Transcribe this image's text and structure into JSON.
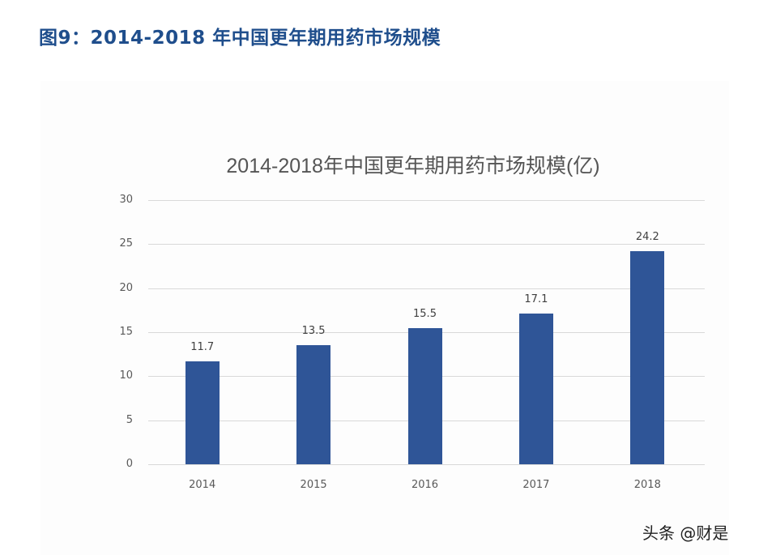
{
  "figure": {
    "title": "图9：2014-2018 年中国更年期用药市场规模"
  },
  "watermark": "头条 @财是",
  "colors": {
    "title": "#1f4e8c",
    "bar": "#2f5597",
    "gridline": "#d9d9d9",
    "chart_title": "#555555"
  },
  "chart_data": {
    "type": "bar",
    "title": "2014-2018年中国更年期用药市场规模(亿)",
    "xlabel": "",
    "ylabel": "",
    "categories": [
      "2014",
      "2015",
      "2016",
      "2017",
      "2018"
    ],
    "values": [
      11.7,
      13.5,
      15.5,
      17.1,
      24.2
    ],
    "data_labels": [
      "11.7",
      "13.5",
      "15.5",
      "17.1",
      "24.2"
    ],
    "ylim": [
      0,
      30
    ],
    "yticks": [
      "0",
      "5",
      "10",
      "15",
      "20",
      "25",
      "30"
    ],
    "grid": true,
    "legend": null,
    "series": [
      {
        "name": "市场规模(亿)",
        "values": [
          11.7,
          13.5,
          15.5,
          17.1,
          24.2
        ]
      }
    ]
  }
}
